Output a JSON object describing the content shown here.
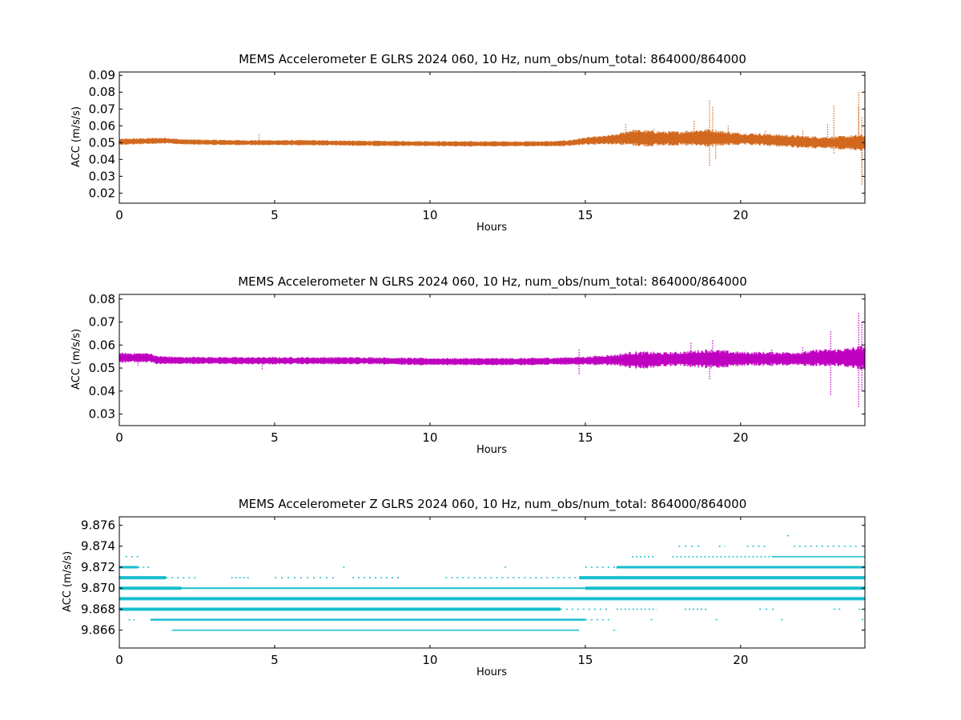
{
  "chart_data": [
    {
      "type": "scatter",
      "title": "MEMS Accelerometer E GLRS 2024 060, 10 Hz, num_obs/num_total: 864000/864000",
      "xlabel": "Hours",
      "ylabel": "ACC (m/s/s)",
      "xlim": [
        0,
        24
      ],
      "ylim": [
        0.014,
        0.092
      ],
      "xticks": [
        "0",
        "5",
        "10",
        "15",
        "20"
      ],
      "yticks": [
        "0.02",
        "0.03",
        "0.04",
        "0.05",
        "0.06",
        "0.07",
        "0.08",
        "0.09"
      ],
      "color": "#d2691e",
      "series": [
        {
          "x": [
            0,
            1,
            1.5,
            2,
            3,
            4,
            5,
            6,
            7,
            8,
            9,
            10,
            11,
            12,
            13,
            14,
            14.5,
            15,
            15.5,
            16,
            16.5,
            17,
            17.5,
            18,
            18.5,
            19,
            19.5,
            20,
            20.5,
            21,
            21.5,
            22,
            22.5,
            23,
            23.5,
            24
          ],
          "center": [
            0.0505,
            0.051,
            0.0512,
            0.0505,
            0.0502,
            0.05,
            0.05,
            0.05,
            0.0498,
            0.0496,
            0.0495,
            0.0494,
            0.0493,
            0.0493,
            0.0493,
            0.0494,
            0.0498,
            0.051,
            0.0515,
            0.052,
            0.053,
            0.0525,
            0.0525,
            0.0525,
            0.0528,
            0.0528,
            0.0525,
            0.0522,
            0.052,
            0.0515,
            0.051,
            0.0505,
            0.05,
            0.05,
            0.05,
            0.05
          ],
          "halfwidth": [
            0.0015,
            0.0015,
            0.0015,
            0.0013,
            0.0013,
            0.0013,
            0.0013,
            0.0013,
            0.0013,
            0.0013,
            0.0013,
            0.0013,
            0.0013,
            0.0013,
            0.0013,
            0.0013,
            0.0015,
            0.0018,
            0.002,
            0.0025,
            0.004,
            0.004,
            0.0035,
            0.0035,
            0.004,
            0.0045,
            0.0035,
            0.003,
            0.003,
            0.003,
            0.003,
            0.003,
            0.003,
            0.003,
            0.0035,
            0.004
          ]
        }
      ],
      "outliers": [
        [
          4.5,
          0.055
        ],
        [
          16.3,
          0.061
        ],
        [
          17.2,
          0.058
        ],
        [
          18.5,
          0.063
        ],
        [
          19.0,
          0.075
        ],
        [
          19.0,
          0.036
        ],
        [
          19.1,
          0.071
        ],
        [
          19.2,
          0.04
        ],
        [
          19.6,
          0.06
        ],
        [
          20.8,
          0.057
        ],
        [
          22.0,
          0.057
        ],
        [
          22.8,
          0.061
        ],
        [
          23.0,
          0.072
        ],
        [
          23.0,
          0.043
        ],
        [
          23.8,
          0.08
        ],
        [
          23.9,
          0.025
        ],
        [
          23.9,
          0.03
        ],
        [
          23.8,
          0.071
        ],
        [
          23.9,
          0.065
        ],
        [
          23.9,
          0.035
        ]
      ]
    },
    {
      "type": "scatter",
      "title": "MEMS Accelerometer N GLRS 2024 060, 10 Hz, num_obs/num_total: 864000/864000",
      "xlabel": "Hours",
      "ylabel": "ACC (m/s/s)",
      "xlim": [
        0,
        24
      ],
      "ylim": [
        0.025,
        0.082
      ],
      "xticks": [
        "0",
        "5",
        "10",
        "15",
        "20"
      ],
      "yticks": [
        "0.03",
        "0.04",
        "0.05",
        "0.06",
        "0.07",
        "0.08"
      ],
      "color": "#c000c0",
      "series": [
        {
          "x": [
            0,
            1,
            1.2,
            2,
            3,
            4,
            5,
            6,
            7,
            8,
            9,
            10,
            11,
            12,
            13,
            14,
            15,
            16,
            16.5,
            17,
            17.5,
            18,
            18.5,
            19,
            19.5,
            20,
            20.5,
            21,
            21.5,
            22,
            22.5,
            23,
            23.5,
            24
          ],
          "center": [
            0.0545,
            0.0545,
            0.0535,
            0.0533,
            0.0533,
            0.0532,
            0.0532,
            0.0532,
            0.0532,
            0.0532,
            0.053,
            0.0528,
            0.0528,
            0.0528,
            0.0528,
            0.053,
            0.0532,
            0.0535,
            0.0535,
            0.0535,
            0.0538,
            0.054,
            0.054,
            0.054,
            0.054,
            0.054,
            0.054,
            0.054,
            0.054,
            0.054,
            0.0545,
            0.0545,
            0.0545,
            0.0545
          ],
          "halfwidth": [
            0.0017,
            0.0017,
            0.0015,
            0.0013,
            0.0013,
            0.0013,
            0.0013,
            0.0013,
            0.0013,
            0.0013,
            0.0013,
            0.0013,
            0.0013,
            0.0013,
            0.0013,
            0.0013,
            0.0015,
            0.002,
            0.003,
            0.003,
            0.0025,
            0.0025,
            0.003,
            0.0035,
            0.003,
            0.0025,
            0.0025,
            0.0025,
            0.0025,
            0.0025,
            0.003,
            0.003,
            0.0035,
            0.0045
          ]
        }
      ],
      "outliers": [
        [
          0.6,
          0.051
        ],
        [
          4.6,
          0.049
        ],
        [
          14.8,
          0.058
        ],
        [
          14.8,
          0.047
        ],
        [
          18.4,
          0.061
        ],
        [
          19.0,
          0.045
        ],
        [
          19.1,
          0.062
        ],
        [
          21.0,
          0.058
        ],
        [
          22.0,
          0.059
        ],
        [
          22.9,
          0.066
        ],
        [
          22.9,
          0.038
        ],
        [
          23.8,
          0.074
        ],
        [
          23.8,
          0.033
        ],
        [
          23.9,
          0.07
        ],
        [
          23.9,
          0.04
        ]
      ]
    },
    {
      "type": "scatter",
      "title": "MEMS Accelerometer Z GLRS 2024 060, 10 Hz, num_obs/num_total: 864000/864000",
      "xlabel": "Hours",
      "ylabel": "ACC (m/s/s)",
      "xlim": [
        0,
        24
      ],
      "ylim": [
        9.8643,
        9.8768
      ],
      "xticks": [
        "0",
        "5",
        "10",
        "15",
        "20"
      ],
      "yticks": [
        "9.866",
        "9.868",
        "9.870",
        "9.872",
        "9.874",
        "9.876"
      ],
      "color": "#17becf",
      "quantized_levels": [
        {
          "y": 9.866,
          "segments": [
            [
              1.7,
              14.8,
              1.5
            ]
          ],
          "sparse": [
            [
              15.9,
              16.0
            ],
            [
              23.9,
              24.0
            ]
          ]
        },
        {
          "y": 9.867,
          "segments": [
            [
              1.0,
              15.0,
              2.5
            ]
          ],
          "sparse": [
            [
              0.3,
              0.5
            ],
            [
              15.0,
              15.9
            ],
            [
              17.1,
              17.2
            ],
            [
              19.2,
              19.3
            ],
            [
              21.3,
              21.4
            ],
            [
              23.9,
              24.0
            ]
          ]
        },
        {
          "y": 9.868,
          "segments": [
            [
              0,
              14.2,
              4
            ]
          ],
          "sparse": [
            [
              14.2,
              15.8
            ],
            [
              16.0,
              17.3
            ],
            [
              18.2,
              18.9
            ],
            [
              20.6,
              21.2
            ],
            [
              23.0,
              23.3
            ],
            [
              23.8,
              24.0
            ]
          ]
        },
        {
          "y": 9.869,
          "segments": [
            [
              0,
              24,
              4
            ]
          ],
          "sparse": []
        },
        {
          "y": 9.87,
          "segments": [
            [
              0,
              2.0,
              4
            ],
            [
              2.0,
              15.0,
              2
            ],
            [
              15.0,
              24,
              4
            ]
          ],
          "sparse": []
        },
        {
          "y": 9.871,
          "segments": [
            [
              0,
              1.5,
              4
            ],
            [
              14.8,
              24,
              4
            ]
          ],
          "sparse": [
            [
              1.5,
              2.5
            ],
            [
              3.6,
              4.2
            ],
            [
              5.0,
              7.0
            ],
            [
              7.5,
              9.0
            ],
            [
              10.5,
              14.8
            ]
          ]
        },
        {
          "y": 9.872,
          "segments": [
            [
              0,
              0.6,
              3
            ],
            [
              16.0,
              24,
              3
            ]
          ],
          "sparse": [
            [
              0.6,
              1.0
            ],
            [
              7.2,
              7.3
            ],
            [
              12.4,
              12.5
            ],
            [
              15.0,
              16.0
            ]
          ]
        },
        {
          "y": 9.873,
          "segments": [
            [
              21.0,
              24,
              1.5
            ]
          ],
          "sparse": [
            [
              0.2,
              0.7
            ],
            [
              16.5,
              17.2
            ],
            [
              17.8,
              21.0
            ]
          ]
        },
        {
          "y": 9.874,
          "segments": [],
          "sparse": [
            [
              18.0,
              18.7
            ],
            [
              19.3,
              19.5
            ],
            [
              20.2,
              20.9
            ],
            [
              21.7,
              23.8
            ]
          ]
        },
        {
          "y": 9.875,
          "segments": [],
          "sparse": [
            [
              21.5,
              21.6
            ]
          ]
        }
      ]
    }
  ]
}
